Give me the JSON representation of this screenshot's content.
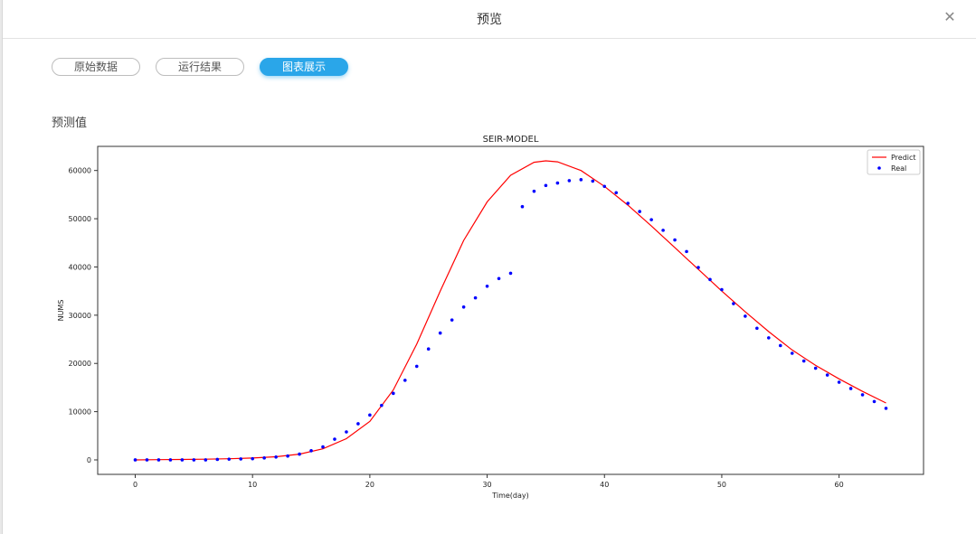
{
  "dialog": {
    "title": "预览",
    "close_icon": "close-icon"
  },
  "tabs": [
    {
      "label": "原始数据",
      "active": false
    },
    {
      "label": "运行结果",
      "active": false
    },
    {
      "label": "图表展示",
      "active": true
    }
  ],
  "section_title": "预测值",
  "colors": {
    "accent": "#2aa6e9",
    "predict": "#ff0000",
    "real": "#0000ff"
  },
  "chart_data": {
    "type": "line",
    "title": "SEIR-MODEL",
    "xlabel": "Time(day)",
    "ylabel": "NUMS",
    "xlim": [
      -3.2,
      67.2
    ],
    "ylim": [
      -3000,
      65000
    ],
    "xticks": [
      0,
      10,
      20,
      30,
      40,
      50,
      60
    ],
    "yticks": [
      0,
      10000,
      20000,
      30000,
      40000,
      50000,
      60000
    ],
    "legend": "top-right",
    "grid": false,
    "series": [
      {
        "name": "Predict",
        "style": "line",
        "color": "#ff0000",
        "x": [
          0,
          2,
          4,
          6,
          8,
          10,
          12,
          14,
          16,
          18,
          20,
          22,
          24,
          26,
          28,
          30,
          32,
          34,
          35,
          36,
          38,
          40,
          42,
          44,
          46,
          48,
          50,
          52,
          54,
          56,
          58,
          60,
          62,
          64
        ],
        "values": [
          0,
          50,
          100,
          150,
          250,
          400,
          650,
          1200,
          2300,
          4400,
          8000,
          14500,
          24000,
          35000,
          45500,
          53500,
          59000,
          61700,
          62000,
          61800,
          60000,
          56700,
          52800,
          48500,
          44000,
          39500,
          35000,
          30700,
          26600,
          22800,
          19600,
          16800,
          14200,
          11800
        ]
      },
      {
        "name": "Real",
        "style": "scatter",
        "color": "#0000ff",
        "x": [
          0,
          1,
          2,
          3,
          4,
          5,
          6,
          7,
          8,
          9,
          10,
          11,
          12,
          13,
          14,
          15,
          16,
          17,
          18,
          19,
          20,
          21,
          22,
          23,
          24,
          25,
          26,
          27,
          28,
          29,
          30,
          31,
          32,
          33,
          34,
          35,
          36,
          37,
          38,
          39,
          40,
          41,
          42,
          43,
          44,
          45,
          46,
          47,
          48,
          49,
          50,
          51,
          52,
          53,
          54,
          55,
          56,
          57,
          58,
          59,
          60,
          61,
          62,
          63,
          64
        ],
        "values": [
          0,
          0,
          0,
          0,
          0,
          0,
          0,
          100,
          150,
          200,
          250,
          400,
          600,
          800,
          1200,
          1900,
          2700,
          4300,
          5800,
          7500,
          9300,
          11300,
          13800,
          16500,
          19400,
          23000,
          26300,
          29000,
          31700,
          33600,
          36000,
          37600,
          38700,
          52500,
          55700,
          56900,
          57400,
          57900,
          58100,
          57800,
          56700,
          55400,
          53200,
          51500,
          49800,
          47600,
          45600,
          43200,
          39900,
          37400,
          35300,
          32400,
          29800,
          27300,
          25300,
          23700,
          22100,
          20500,
          19000,
          17600,
          16100,
          14800,
          13500,
          12100,
          10700
        ]
      }
    ]
  }
}
